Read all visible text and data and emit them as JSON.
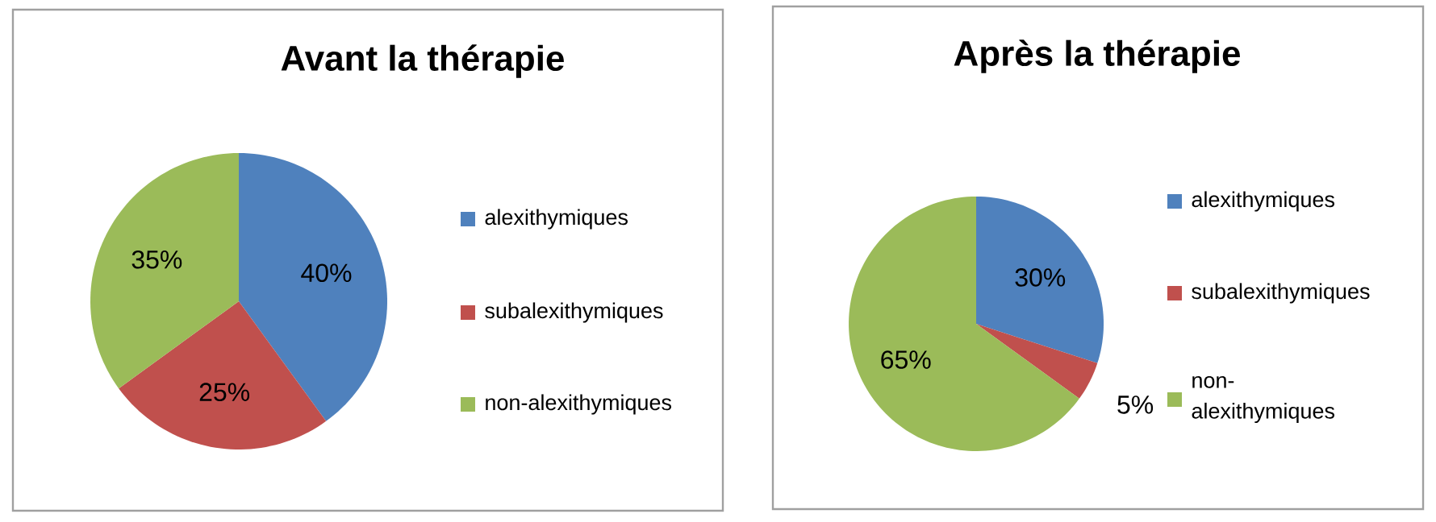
{
  "chart_data": [
    {
      "type": "pie",
      "title": "Avant la thérapie",
      "categories": [
        "alexithymiques",
        "subalexithymiques",
        "non-alexithymiques"
      ],
      "values": [
        40,
        25,
        35
      ],
      "value_labels": [
        "40%",
        "25%",
        "35%"
      ],
      "colors": [
        "#4f81bd",
        "#c0504d",
        "#9bbb59"
      ],
      "legend": "right"
    },
    {
      "type": "pie",
      "title": "Après la thérapie",
      "categories": [
        "alexithymiques",
        "subalexithymiques",
        "non-alexithymiques"
      ],
      "values": [
        30,
        5,
        65
      ],
      "value_labels": [
        "30%",
        "5%",
        "65%"
      ],
      "colors": [
        "#4f81bd",
        "#c0504d",
        "#9bbb59"
      ],
      "legend": "right"
    }
  ]
}
